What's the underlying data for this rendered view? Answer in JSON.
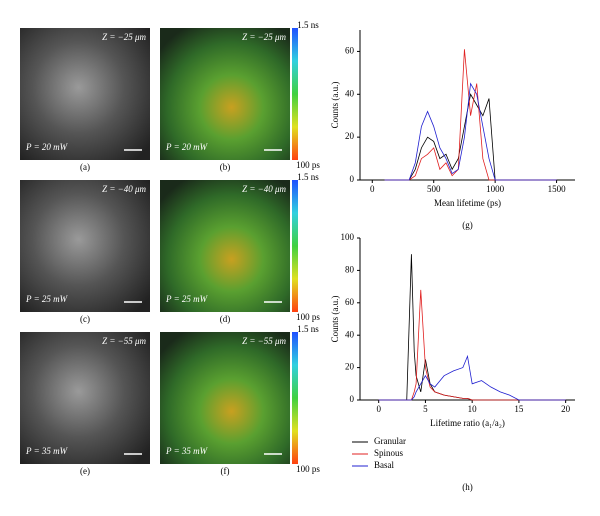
{
  "images": [
    {
      "label": "(a)",
      "depth": "Z = −25 μm",
      "power": "P = 20 mW"
    },
    {
      "label": "(b)",
      "depth": "Z = −25 μm",
      "power": "P = 20 mW",
      "colorbar": [
        "1.5 ns",
        "100 ps"
      ]
    },
    {
      "label": "(c)",
      "depth": "Z = −40 μm",
      "power": "P = 25 mW"
    },
    {
      "label": "(d)",
      "depth": "Z = −40 μm",
      "power": "P = 25 mW",
      "colorbar": [
        "1.5 ns",
        "100 ps"
      ]
    },
    {
      "label": "(e)",
      "depth": "Z = −55 μm",
      "power": "P = 35 mW"
    },
    {
      "label": "(f)",
      "depth": "Z = −55 μm",
      "power": "P = 35 mW",
      "colorbar": [
        "1.5 ns",
        "100 ps"
      ]
    }
  ],
  "chart_data": [
    {
      "type": "line",
      "panel": "(g)",
      "xlabel": "Mean lifetime (ps)",
      "ylabel": "Counts (a.u.)",
      "x": [
        100,
        300,
        350,
        400,
        450,
        500,
        550,
        600,
        650,
        700,
        750,
        800,
        850,
        900,
        950,
        1000,
        1050,
        1500
      ],
      "series": [
        {
          "name": "Granular",
          "color": "#000000",
          "values": [
            0,
            0,
            5,
            15,
            20,
            18,
            10,
            12,
            5,
            10,
            25,
            40,
            35,
            30,
            38,
            0,
            0,
            0
          ]
        },
        {
          "name": "Spinous",
          "color": "#e02020",
          "values": [
            0,
            0,
            2,
            10,
            12,
            15,
            5,
            8,
            2,
            5,
            61,
            30,
            45,
            10,
            0,
            0,
            0,
            0
          ]
        },
        {
          "name": "Basal",
          "color": "#2020d0",
          "values": [
            0,
            0,
            8,
            25,
            32,
            25,
            15,
            10,
            3,
            5,
            20,
            45,
            40,
            25,
            10,
            0,
            0,
            0
          ]
        }
      ],
      "xlim": [
        -100,
        1650
      ],
      "xticks": [
        0,
        500,
        1000,
        1500
      ],
      "ylim": [
        0,
        70
      ],
      "yticks": [
        0,
        20,
        40,
        60
      ]
    },
    {
      "type": "line",
      "panel": "(h)",
      "xlabel": "Lifetime ratio (a₁/a₂)",
      "ylabel": "Counts (a.u.)",
      "x": [
        0,
        3,
        3.5,
        3.8,
        4,
        4.5,
        5,
        5.5,
        6,
        7,
        8,
        9,
        9.5,
        10,
        11,
        12,
        13,
        14,
        15,
        20
      ],
      "series": [
        {
          "name": "Granular",
          "color": "#000000",
          "values": [
            0,
            0,
            90,
            30,
            15,
            5,
            25,
            10,
            5,
            3,
            2,
            1,
            1,
            0,
            0,
            0,
            0,
            0,
            0,
            0
          ]
        },
        {
          "name": "Spinous",
          "color": "#e02020",
          "values": [
            0,
            0,
            0,
            5,
            10,
            68,
            20,
            8,
            5,
            3,
            2,
            1,
            1,
            0,
            0,
            0,
            0,
            0,
            0,
            0
          ]
        },
        {
          "name": "Basal",
          "color": "#2020d0",
          "values": [
            0,
            0,
            0,
            2,
            5,
            10,
            15,
            10,
            8,
            15,
            18,
            20,
            27,
            10,
            12,
            8,
            5,
            3,
            0,
            0
          ]
        }
      ],
      "xlim": [
        -2,
        21
      ],
      "xticks": [
        0,
        5,
        10,
        15,
        20
      ],
      "ylim": [
        0,
        100
      ],
      "yticks": [
        0,
        20,
        40,
        60,
        80,
        100
      ],
      "legend": "bottom-left"
    }
  ]
}
